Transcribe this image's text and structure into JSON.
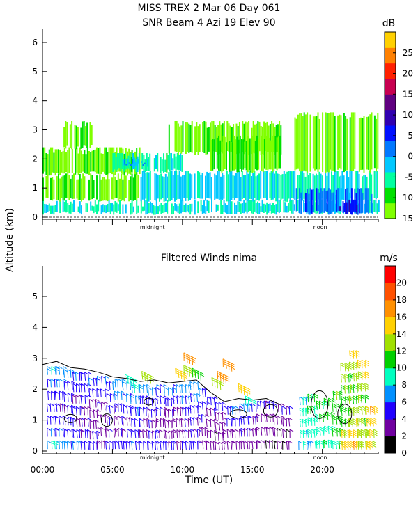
{
  "header": {
    "title_line1": "MISS TREX    2 Mar 06 Day 061",
    "title_line2": "SNR Beam 4 Azi   19 Elev 90"
  },
  "shared_labels": {
    "y_axis": "Altitude (km)",
    "x_axis": "Time (UT)",
    "midnight": "midnight",
    "noon": "noon"
  },
  "colors": {
    "snr_scale": [
      "#80ff00",
      "#00e000",
      "#00ffa0",
      "#00c8ff",
      "#0078ff",
      "#0010ff",
      "#3000b0",
      "#600080",
      "#c80050",
      "#ff2000",
      "#ff8000",
      "#ffd000"
    ],
    "wind_scale": [
      "#000000",
      "#7000a0",
      "#2000ff",
      "#0090ff",
      "#00ffc0",
      "#00d000",
      "#a0e000",
      "#ffd000",
      "#ff9000",
      "#ff5000",
      "#ff0000"
    ]
  },
  "chart_data": [
    {
      "type": "heatmap",
      "title": "",
      "xlim": [
        0,
        24
      ],
      "ylim": [
        0,
        6.4
      ],
      "yticks": [
        0,
        1,
        2,
        3,
        4,
        5,
        6
      ],
      "x_markers": [
        {
          "label": "midnight",
          "x": 7.85
        },
        {
          "label": "noon",
          "x": 19.85
        }
      ],
      "colorbar": {
        "unit": "dB",
        "range": [
          -15,
          30
        ],
        "ticks": [
          -15,
          -10,
          -5,
          0,
          5,
          10,
          15,
          20,
          25
        ]
      },
      "regions": [
        {
          "x": [
            0,
            24
          ],
          "y": [
            0.15,
            0.6
          ],
          "snr": -4
        },
        {
          "x": [
            0,
            7
          ],
          "y": [
            0.6,
            1.5
          ],
          "snr": -12
        },
        {
          "x": [
            0,
            7
          ],
          "y": [
            1.5,
            2.4
          ],
          "snr": -13
        },
        {
          "x": [
            1.5,
            3.5
          ],
          "y": [
            2.4,
            3.3
          ],
          "snr": -13
        },
        {
          "x": [
            5,
            10
          ],
          "y": [
            1.6,
            2.2
          ],
          "snr": -5
        },
        {
          "x": [
            5.5,
            7.5
          ],
          "y": [
            1.8,
            2.0
          ],
          "snr": 0
        },
        {
          "x": [
            7,
            17
          ],
          "y": [
            0.6,
            1.6
          ],
          "snr": -3
        },
        {
          "x": [
            9,
            17
          ],
          "y": [
            2.2,
            3.3
          ],
          "snr": -13
        },
        {
          "x": [
            12,
            17
          ],
          "y": [
            1.6,
            2.8
          ],
          "snr": -12
        },
        {
          "x": [
            17,
            24
          ],
          "y": [
            0.6,
            1.6
          ],
          "snr": -4
        },
        {
          "x": [
            18,
            24
          ],
          "y": [
            1.6,
            3.6
          ],
          "snr": -13
        },
        {
          "x": [
            18,
            23.5
          ],
          "y": [
            0.15,
            1.0
          ],
          "snr": 2
        },
        {
          "x": [
            21,
            22.5
          ],
          "y": [
            0.15,
            0.6
          ],
          "snr": 8
        }
      ]
    },
    {
      "type": "scatter",
      "title": "Filtered Winds nima",
      "xlim": [
        0,
        24
      ],
      "ylim": [
        0,
        6
      ],
      "yticks": [
        0,
        1,
        2,
        3,
        4,
        5
      ],
      "xticks": [
        {
          "x": 0,
          "label": "00:00"
        },
        {
          "x": 5,
          "label": "05:00"
        },
        {
          "x": 10,
          "label": "10:00"
        },
        {
          "x": 15,
          "label": "15:00"
        },
        {
          "x": 20,
          "label": "20:00"
        }
      ],
      "x_markers": [
        {
          "label": "midnight",
          "x": 7.85
        },
        {
          "label": "noon",
          "x": 19.85
        }
      ],
      "colorbar": {
        "unit": "m/s",
        "range": [
          0,
          22
        ],
        "ticks": [
          0,
          2,
          4,
          6,
          8,
          10,
          12,
          14,
          16,
          18,
          20
        ]
      },
      "wind_columns": [
        {
          "x": 0.6,
          "top": 2.8,
          "speeds": [
            8,
            6,
            5,
            5,
            5,
            6,
            8
          ]
        },
        {
          "x": 1.2,
          "top": 2.8,
          "speeds": [
            7,
            6,
            5,
            4,
            5,
            6,
            7
          ]
        },
        {
          "x": 1.8,
          "top": 2.7,
          "speeds": [
            7,
            5,
            5,
            4,
            4,
            5,
            6
          ]
        },
        {
          "x": 2.4,
          "top": 2.6,
          "speeds": [
            6,
            5,
            4,
            4,
            4,
            5,
            6
          ]
        },
        {
          "x": 3.0,
          "top": 2.6,
          "speeds": [
            5,
            5,
            4,
            3,
            4,
            4,
            5
          ]
        },
        {
          "x": 3.6,
          "top": 2.4,
          "speeds": [
            6,
            5,
            4,
            3,
            3,
            4,
            5
          ]
        },
        {
          "x": 4.2,
          "top": 2.5,
          "speeds": [
            6,
            5,
            4,
            3,
            3,
            4
          ]
        },
        {
          "x": 4.8,
          "top": 2.3,
          "speeds": [
            6,
            5,
            4,
            4,
            4,
            5
          ]
        },
        {
          "x": 5.4,
          "top": 2.4,
          "speeds": [
            7,
            6,
            5,
            4,
            4,
            5
          ]
        },
        {
          "x": 6.0,
          "top": 2.3,
          "speeds": [
            7,
            6,
            5,
            4,
            4,
            5
          ]
        },
        {
          "x": 6.6,
          "top": 2.2,
          "speeds": [
            8,
            7,
            6,
            5,
            5,
            6
          ]
        },
        {
          "x": 7.2,
          "top": 2.2,
          "speeds": [
            7,
            6,
            5,
            4,
            4,
            5
          ]
        },
        {
          "x": 7.8,
          "top": 2.1,
          "speeds": [
            6,
            5,
            4,
            4,
            4,
            5
          ]
        },
        {
          "x": 8.4,
          "top": 2.2,
          "speeds": [
            6,
            5,
            4,
            3,
            4,
            5
          ]
        },
        {
          "x": 9.0,
          "top": 2.1,
          "speeds": [
            6,
            5,
            4,
            3,
            3,
            4
          ]
        },
        {
          "x": 9.6,
          "top": 2.2,
          "speeds": [
            6,
            5,
            4,
            3,
            3,
            4
          ]
        },
        {
          "x": 10.2,
          "top": 2.2,
          "speeds": [
            7,
            6,
            5,
            4,
            4,
            5
          ]
        },
        {
          "x": 10.8,
          "top": 2.3,
          "speeds": [
            7,
            6,
            5,
            4,
            4,
            5
          ]
        },
        {
          "x": 11.4,
          "top": 2.1,
          "speeds": [
            6,
            5,
            4,
            3,
            3
          ]
        },
        {
          "x": 12.0,
          "top": 1.8,
          "speeds": [
            5,
            4,
            3,
            3,
            3
          ]
        },
        {
          "x": 12.6,
          "top": 1.6,
          "speeds": [
            5,
            4,
            3,
            2,
            3
          ]
        },
        {
          "x": 13.2,
          "top": 1.5,
          "speeds": [
            5,
            4,
            3,
            3
          ]
        },
        {
          "x": 13.8,
          "top": 1.5,
          "speeds": [
            6,
            5,
            4,
            3
          ]
        },
        {
          "x": 14.4,
          "top": 1.6,
          "speeds": [
            6,
            5,
            4,
            3
          ]
        },
        {
          "x": 15.0,
          "top": 1.6,
          "speeds": [
            5,
            4,
            3,
            3
          ]
        },
        {
          "x": 15.6,
          "top": 1.7,
          "speeds": [
            5,
            4,
            3,
            3
          ]
        },
        {
          "x": 16.2,
          "top": 1.7,
          "speeds": [
            4,
            3,
            3,
            2
          ]
        },
        {
          "x": 16.8,
          "top": 1.6,
          "speeds": [
            4,
            3,
            2,
            2
          ]
        },
        {
          "x": 17.4,
          "top": 1.5,
          "speeds": [
            4,
            3,
            2,
            2
          ]
        },
        {
          "x": 18.6,
          "top": 1.8,
          "speeds": [
            8,
            9,
            9,
            8,
            8
          ]
        },
        {
          "x": 19.2,
          "top": 1.9,
          "speeds": [
            10,
            10,
            9,
            9,
            8
          ]
        },
        {
          "x": 19.8,
          "top": 1.7,
          "speeds": [
            10,
            10,
            9,
            9
          ]
        },
        {
          "x": 20.4,
          "top": 1.8,
          "speeds": [
            11,
            11,
            10,
            10
          ]
        },
        {
          "x": 21.0,
          "top": 2.0,
          "speeds": [
            12,
            11,
            11,
            10,
            10
          ]
        },
        {
          "x": 21.6,
          "top": 2.9,
          "speeds": [
            13,
            12,
            12,
            11,
            11,
            12,
            14,
            15
          ]
        },
        {
          "x": 22.2,
          "top": 3.3,
          "speeds": [
            14,
            13,
            12,
            12,
            12,
            13,
            14,
            15,
            16
          ]
        },
        {
          "x": 22.8,
          "top": 3.0,
          "speeds": [
            15,
            14,
            13,
            12,
            12,
            12,
            13,
            14
          ]
        },
        {
          "x": 23.4,
          "top": 1.5,
          "speeds": [
            16,
            15,
            14,
            14
          ]
        }
      ],
      "wind_patches": [
        {
          "x": 9.8,
          "y": 2.5,
          "speed": 14
        },
        {
          "x": 10.4,
          "y": 2.6,
          "speed": 13
        },
        {
          "x": 10.4,
          "y": 3.0,
          "speed": 17
        },
        {
          "x": 11.0,
          "y": 2.5,
          "speed": 11
        },
        {
          "x": 12.8,
          "y": 2.4,
          "speed": 16
        },
        {
          "x": 13.2,
          "y": 2.8,
          "speed": 17
        },
        {
          "x": 12.4,
          "y": 2.2,
          "speed": 12
        },
        {
          "x": 14.3,
          "y": 2.0,
          "speed": 15
        },
        {
          "x": 14.8,
          "y": 1.6,
          "speed": 9
        },
        {
          "x": 7.4,
          "y": 2.4,
          "speed": 13
        },
        {
          "x": 6.2,
          "y": 2.3,
          "speed": 9
        }
      ]
    }
  ]
}
